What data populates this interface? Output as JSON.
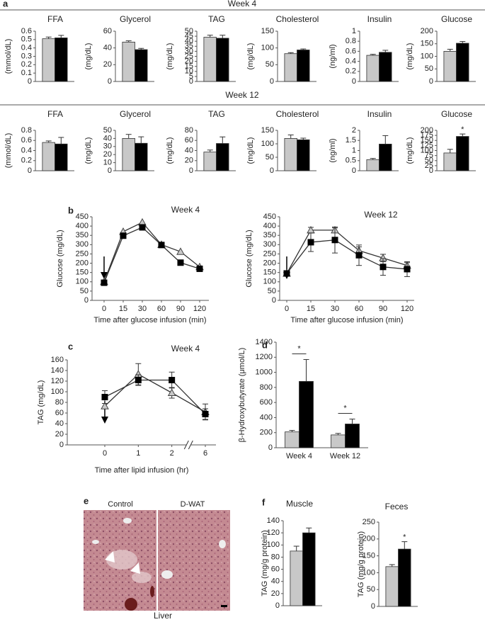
{
  "panel_labels": [
    "a",
    "b",
    "c",
    "d",
    "e",
    "f"
  ],
  "section_titles": [
    "Week 4",
    "Week 12"
  ],
  "image": {
    "left": "Control",
    "right": "D-WAT",
    "caption": "Liver"
  },
  "chart_data": [
    {
      "type": "bar",
      "title": "FFA",
      "ylabel": "(mmol/dL)",
      "ylim": [
        0,
        0.6
      ],
      "yticks": [
        0,
        0.1,
        0.2,
        0.3,
        0.4,
        0.5,
        0.6
      ],
      "series": [
        {
          "color": "#c8c8c8",
          "values": [
            0.51
          ],
          "errors": [
            0.02
          ]
        },
        {
          "color": "#000000",
          "values": [
            0.52
          ],
          "errors": [
            0.03
          ]
        }
      ]
    },
    {
      "type": "bar",
      "title": "Glycerol",
      "ylabel": "(mg/dL)",
      "ylim": [
        0,
        60
      ],
      "yticks": [
        0,
        20,
        40,
        60
      ],
      "series": [
        {
          "color": "#c8c8c8",
          "values": [
            47
          ],
          "errors": [
            1.5
          ]
        },
        {
          "color": "#000000",
          "values": [
            38
          ],
          "errors": [
            1.5
          ]
        }
      ]
    },
    {
      "type": "bar",
      "title": "TAG",
      "ylabel": "(mg/dL)",
      "ylim": [
        0,
        50
      ],
      "yticks": [
        0,
        5,
        10,
        15,
        20,
        25,
        30,
        35,
        40,
        45,
        50
      ],
      "series": [
        {
          "color": "#c8c8c8",
          "values": [
            44
          ],
          "errors": [
            2
          ]
        },
        {
          "color": "#000000",
          "values": [
            43
          ],
          "errors": [
            3
          ]
        }
      ]
    },
    {
      "type": "bar",
      "title": "Cholesterol",
      "ylabel": "(mg/dL)",
      "ylim": [
        0,
        150
      ],
      "yticks": [
        0,
        50,
        100,
        150
      ],
      "series": [
        {
          "color": "#c8c8c8",
          "values": [
            83
          ],
          "errors": [
            3
          ]
        },
        {
          "color": "#000000",
          "values": [
            94
          ],
          "errors": [
            3
          ]
        }
      ]
    },
    {
      "type": "bar",
      "title": "Insulin",
      "ylabel": "(ng/ml)",
      "ylim": [
        0,
        1
      ],
      "yticks": [
        0,
        0.2,
        0.4,
        0.6,
        0.8,
        1
      ],
      "series": [
        {
          "color": "#c8c8c8",
          "values": [
            0.52
          ],
          "errors": [
            0.02
          ]
        },
        {
          "color": "#000000",
          "values": [
            0.58
          ],
          "errors": [
            0.04
          ]
        }
      ]
    },
    {
      "type": "bar",
      "title": "Glucose",
      "ylabel": "(mg/dL)",
      "ylim": [
        0,
        200
      ],
      "yticks": [
        0,
        50,
        100,
        150,
        200
      ],
      "series": [
        {
          "color": "#c8c8c8",
          "values": [
            120
          ],
          "errors": [
            8
          ]
        },
        {
          "color": "#000000",
          "values": [
            152
          ],
          "errors": [
            7
          ]
        }
      ]
    },
    {
      "type": "bar",
      "title": "FFA",
      "ylabel": "(mmol/dL)",
      "ylim": [
        0,
        0.8
      ],
      "yticks": [
        0,
        0.2,
        0.4,
        0.6,
        0.8
      ],
      "series": [
        {
          "color": "#c8c8c8",
          "values": [
            0.56
          ],
          "errors": [
            0.03
          ]
        },
        {
          "color": "#000000",
          "values": [
            0.53
          ],
          "errors": [
            0.13
          ]
        }
      ]
    },
    {
      "type": "bar",
      "title": "Glycerol",
      "ylabel": "(mg/dL)",
      "ylim": [
        0,
        50
      ],
      "yticks": [
        0,
        10,
        20,
        30,
        40,
        50
      ],
      "series": [
        {
          "color": "#c8c8c8",
          "values": [
            40
          ],
          "errors": [
            5
          ]
        },
        {
          "color": "#000000",
          "values": [
            34
          ],
          "errors": [
            8
          ]
        }
      ]
    },
    {
      "type": "bar",
      "title": "TAG",
      "ylabel": "(mg/dL)",
      "ylim": [
        0,
        80
      ],
      "yticks": [
        0,
        20,
        40,
        60,
        80
      ],
      "series": [
        {
          "color": "#c8c8c8",
          "values": [
            37
          ],
          "errors": [
            4
          ]
        },
        {
          "color": "#000000",
          "values": [
            54
          ],
          "errors": [
            13
          ]
        }
      ]
    },
    {
      "type": "bar",
      "title": "Cholesterol",
      "ylabel": "(mg/dL)",
      "ylim": [
        0,
        150
      ],
      "yticks": [
        0,
        50,
        100,
        150
      ],
      "series": [
        {
          "color": "#c8c8c8",
          "values": [
            120
          ],
          "errors": [
            13
          ]
        },
        {
          "color": "#000000",
          "values": [
            115
          ],
          "errors": [
            6
          ]
        }
      ]
    },
    {
      "type": "bar",
      "title": "Insulin",
      "ylabel": "(ng/ml)",
      "ylim": [
        0,
        2
      ],
      "yticks": [
        0,
        0.5,
        1,
        1.5,
        2
      ],
      "series": [
        {
          "color": "#c8c8c8",
          "values": [
            0.55
          ],
          "errors": [
            0.06
          ]
        },
        {
          "color": "#000000",
          "values": [
            1.32
          ],
          "errors": [
            0.42
          ]
        }
      ]
    },
    {
      "type": "bar",
      "title": "Glucose",
      "ylabel": "(mg/dL)",
      "ylim": [
        0,
        200
      ],
      "yticks": [
        0,
        25,
        50,
        75,
        100,
        125,
        150,
        175,
        200
      ],
      "annotations": [
        "*"
      ],
      "series": [
        {
          "color": "#c8c8c8",
          "values": [
            88
          ],
          "errors": [
            18
          ]
        },
        {
          "color": "#000000",
          "values": [
            170
          ],
          "errors": [
            12
          ]
        }
      ]
    },
    {
      "type": "line",
      "title": "Week 4",
      "ylabel": "Glucose (mg/dL)",
      "xlabel": "Time after glucose infusion (min)",
      "categories": [
        "0",
        "15",
        "30",
        "60",
        "90",
        "120"
      ],
      "ylim": [
        0,
        450
      ],
      "yticks": [
        0,
        50,
        100,
        150,
        200,
        250,
        300,
        350,
        400,
        450
      ],
      "series": [
        {
          "color": "#c8c8c8",
          "marker": "triangle",
          "values": [
            100,
            370,
            420,
            300,
            262,
            180
          ]
        },
        {
          "color": "#000000",
          "marker": "square",
          "values": [
            95,
            348,
            393,
            298,
            203,
            170
          ]
        }
      ]
    },
    {
      "type": "line",
      "title": "Week 12",
      "ylabel": "Glucose (mg/dL)",
      "xlabel": "Time after glucose infusion (min)",
      "categories": [
        "0",
        "15",
        "30",
        "60",
        "90",
        "120"
      ],
      "ylim": [
        0,
        450
      ],
      "yticks": [
        0,
        50,
        100,
        150,
        200,
        250,
        300,
        350,
        400,
        450
      ],
      "series": [
        {
          "color": "#c8c8c8",
          "marker": "triangle",
          "values": [
            145,
            378,
            378,
            268,
            228,
            188
          ],
          "errors": [
            10,
            15,
            12,
            20,
            20,
            15
          ]
        },
        {
          "color": "#000000",
          "marker": "square",
          "values": [
            145,
            313,
            325,
            243,
            180,
            168
          ],
          "errors": [
            10,
            50,
            70,
            55,
            45,
            40
          ]
        }
      ]
    },
    {
      "type": "line",
      "title": "Week 4",
      "ylabel": "TAG (mg/dL)",
      "xlabel": "Time after lipid infusion (hr)",
      "categories": [
        "0",
        "1",
        "2",
        "6"
      ],
      "ylim": [
        0,
        160
      ],
      "yticks": [
        0,
        20,
        40,
        60,
        80,
        100,
        120,
        140,
        160
      ],
      "series": [
        {
          "color": "#c8c8c8",
          "marker": "triangle",
          "values": [
            73,
            133,
            98,
            62
          ],
          "errors": [
            5,
            20,
            10,
            15
          ]
        },
        {
          "color": "#000000",
          "marker": "square",
          "values": [
            90,
            122,
            122,
            58
          ],
          "errors": [
            12,
            10,
            15,
            10
          ]
        }
      ]
    },
    {
      "type": "bar",
      "ylabel": "β-Hydroxybutyrate (μmol/L)",
      "categories": [
        "Week 4",
        "Week 12"
      ],
      "ylim": [
        0,
        1400
      ],
      "yticks": [
        0,
        200,
        400,
        600,
        800,
        1000,
        1200,
        1400
      ],
      "annotations": [
        "*",
        "*"
      ],
      "series": [
        {
          "color": "#c8c8c8",
          "values": [
            210,
            170
          ],
          "errors": [
            20,
            20
          ]
        },
        {
          "color": "#000000",
          "values": [
            880,
            315
          ],
          "errors": [
            290,
            65
          ]
        }
      ]
    },
    {
      "type": "bar",
      "title": "Muscle",
      "ylabel": "TAG (mg/g  protein)",
      "ylim": [
        0,
        140
      ],
      "yticks": [
        0,
        20,
        40,
        60,
        80,
        100,
        120,
        140
      ],
      "series": [
        {
          "color": "#c8c8c8",
          "values": [
            90
          ],
          "errors": [
            8
          ]
        },
        {
          "color": "#000000",
          "values": [
            120
          ],
          "errors": [
            8
          ]
        }
      ]
    },
    {
      "type": "bar",
      "title": "Feces",
      "ylabel": "TAG (mg/g  protein)",
      "ylim": [
        0,
        250
      ],
      "yticks": [
        0,
        50,
        100,
        150,
        200,
        250
      ],
      "annotations": [
        "*"
      ],
      "series": [
        {
          "color": "#c8c8c8",
          "values": [
            118
          ],
          "errors": [
            6
          ]
        },
        {
          "color": "#000000",
          "values": [
            170
          ],
          "errors": [
            22
          ]
        }
      ]
    }
  ]
}
